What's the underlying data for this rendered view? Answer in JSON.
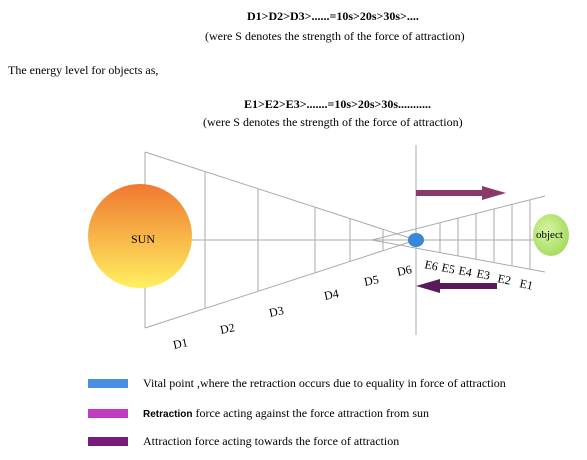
{
  "header": {
    "d_relation": "D1>D2>D3>......=10s>20s>30s>....",
    "d_note": "(were S denotes the strength of the force of attraction)",
    "intro": "The energy level for objects as,",
    "e_relation": "E1>E2>E3>.......=10s>20s>30s...........",
    "e_note": "(were S denotes the strength of the force of attraction)"
  },
  "diagram": {
    "sun_label": "SUN",
    "object_label": "object",
    "distance_labels": [
      "D1",
      "D2",
      "D3",
      "D4",
      "D5",
      "D6"
    ],
    "energy_labels": [
      "E6",
      "E5",
      "E4",
      "E3",
      "E2",
      "E1"
    ],
    "colors": {
      "sun_top": "#f07830",
      "sun_bottom": "#fff060",
      "object": "#9fd85a",
      "vital_point": "#3a86d8",
      "retraction_arrow": "#8a3a6a",
      "attraction_arrow": "#5a1a5a"
    }
  },
  "legend": [
    {
      "color": "#4a90e2",
      "label": "Vital point ,where the retraction occurs due to equality in force of attraction"
    },
    {
      "color": "#c23ac2",
      "label_prefix": "Retraction",
      "label": " force acting against the force attraction from sun"
    },
    {
      "color": "#7a1a7a",
      "label": "Attraction force acting towards the force of attraction"
    }
  ]
}
